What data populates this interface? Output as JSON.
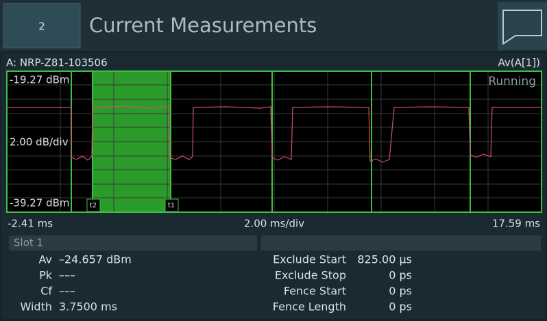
{
  "header": {
    "button": "2",
    "title": "Current Measurements"
  },
  "panel": {
    "sensor": "A: NRP-Z81-103506",
    "channel": "Av(A[1])",
    "plot": {
      "top_label": "-19.27 dBm",
      "status": "Running",
      "scale_label": "2.00 dB/div",
      "bottom_label": "-39.27 dBm",
      "marker_left": "t2",
      "marker_right": "t1"
    },
    "x_axis": {
      "start": "-2.41 ms",
      "scale": "2.00 ms/div",
      "end": "17.59 ms"
    }
  },
  "slot": {
    "title": "Slot 1",
    "left": [
      {
        "label": "Av",
        "value": "–24.657 dBm"
      },
      {
        "label": "Pk",
        "value": "–––"
      },
      {
        "label": "Cf",
        "value": "–––"
      },
      {
        "label": "Width",
        "value": "3.7500 ms"
      }
    ],
    "right": [
      {
        "label": "Exclude Start",
        "value": "825.00 µs"
      },
      {
        "label": "Exclude Stop",
        "value": "0 ps"
      },
      {
        "label": "Fence Start",
        "value": "0 ps"
      },
      {
        "label": "Fence Length",
        "value": "0 ps"
      }
    ]
  }
}
